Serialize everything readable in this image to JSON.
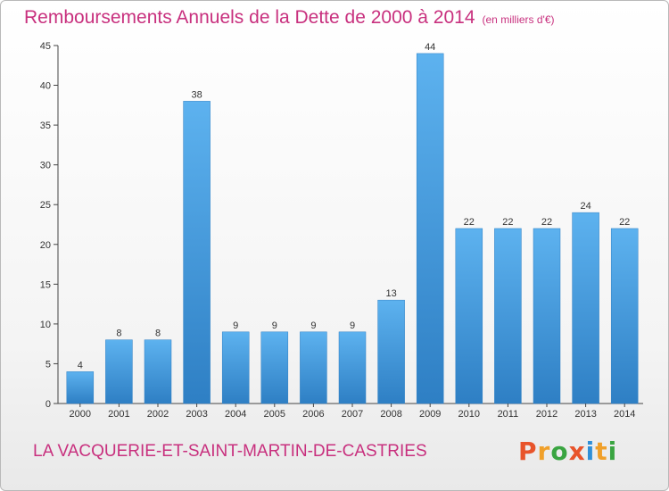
{
  "chart_data": {
    "type": "bar",
    "title": "Remboursements Annuels de la Dette de 2000 à 2014",
    "subtitle": "(en milliers d'€)",
    "categories": [
      "2000",
      "2001",
      "2002",
      "2003",
      "2004",
      "2005",
      "2006",
      "2007",
      "2008",
      "2009",
      "2010",
      "2011",
      "2012",
      "2013",
      "2014"
    ],
    "values": [
      4,
      8,
      8,
      38,
      9,
      9,
      9,
      9,
      13,
      44,
      22,
      22,
      22,
      24,
      22
    ],
    "ylim": [
      0,
      45
    ],
    "yticks": [
      0,
      5,
      10,
      15,
      20,
      25,
      30,
      35,
      40,
      45
    ],
    "xlabel": "",
    "ylabel": "",
    "grid": false,
    "bar_color": "#4aa3e6",
    "bar_color_dark": "#2e7fc4"
  },
  "footer": {
    "commune": "LA VACQUERIE-ET-SAINT-MARTIN-DE-CASTRIES",
    "brand": "Proxiti",
    "brand_colors": [
      "#e8542b",
      "#f0a02a",
      "#3aa541",
      "#e8542b",
      "#2f8fd8",
      "#f0a02a",
      "#3aa541"
    ]
  },
  "colors": {
    "accent": "#c8307e"
  }
}
